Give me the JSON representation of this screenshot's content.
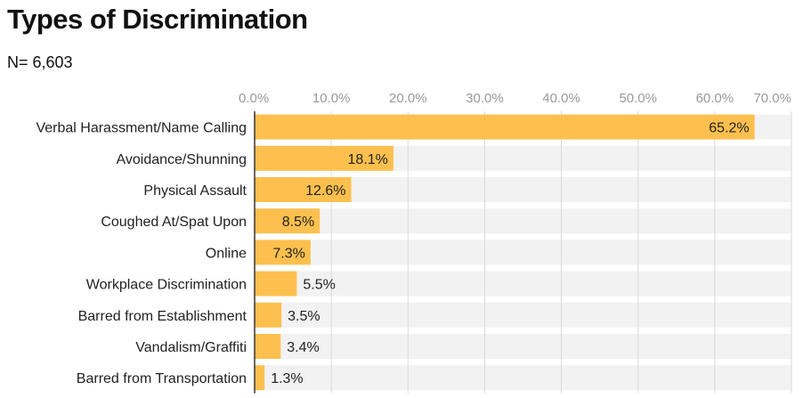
{
  "chart_data": {
    "type": "bar",
    "orientation": "horizontal",
    "title": "Types of Discrimination",
    "subtitle": "N= 6,603",
    "categories": [
      "Verbal Harassment/Name Calling",
      "Avoidance/Shunning",
      "Physical Assault",
      "Coughed At/Spat Upon",
      "Online",
      "Workplace Discrimination",
      "Barred from Establishment",
      "Vandalism/Graffiti",
      "Barred from Transportation"
    ],
    "values": [
      65.2,
      18.1,
      12.6,
      8.5,
      7.3,
      5.5,
      3.5,
      3.4,
      1.3
    ],
    "value_labels": [
      "65.2%",
      "18.1%",
      "12.6%",
      "8.5%",
      "7.3%",
      "5.5%",
      "3.5%",
      "3.4%",
      "1.3%"
    ],
    "xlim": [
      0,
      70
    ],
    "x_ticks": [
      0,
      10,
      20,
      30,
      40,
      50,
      60,
      70
    ],
    "x_tick_labels": [
      "0.0%",
      "10.0%",
      "20.0%",
      "30.0%",
      "40.0%",
      "50.0%",
      "60.0%",
      "70.0%"
    ],
    "xlabel": "",
    "ylabel": "",
    "grid": true,
    "axis_position": "top",
    "colors": {
      "bar": "#FDC04E",
      "row_band": "#F2F2F2",
      "grid": "#DADADA",
      "axis": "#333333"
    }
  }
}
